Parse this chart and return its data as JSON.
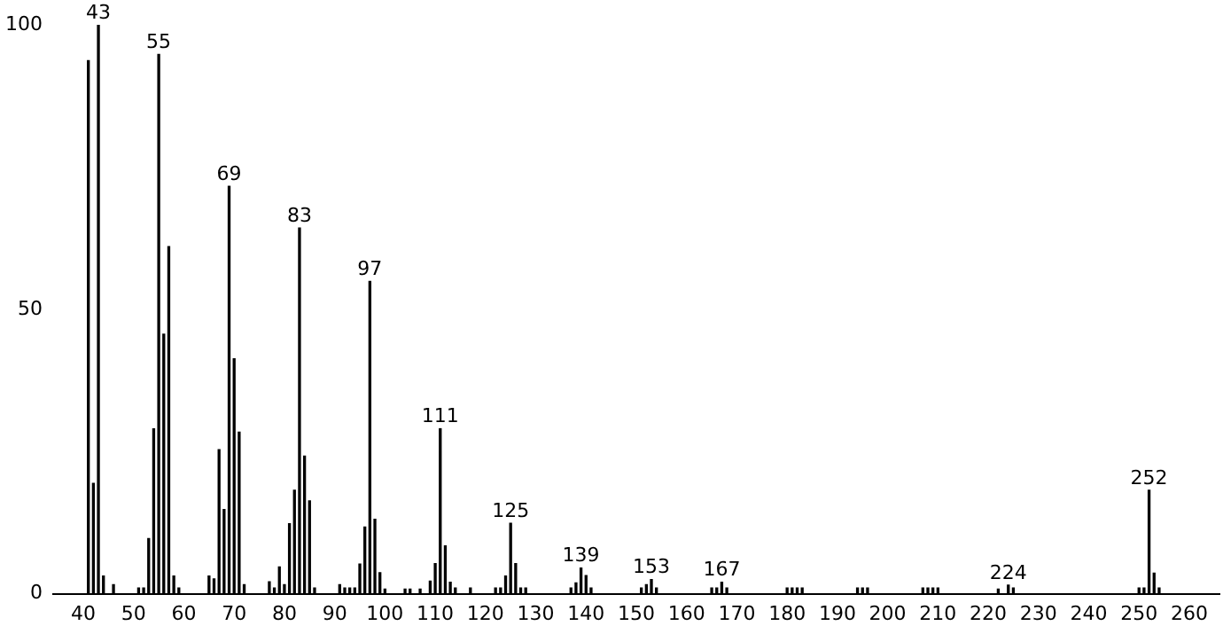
{
  "chart_data": {
    "type": "bar",
    "color": "#000000",
    "x": [
      41,
      42,
      43,
      44,
      46,
      51,
      52,
      53,
      54,
      55,
      56,
      57,
      58,
      59,
      65,
      66,
      67,
      68,
      69,
      70,
      71,
      72,
      77,
      78,
      79,
      80,
      81,
      82,
      83,
      84,
      85,
      86,
      91,
      92,
      93,
      94,
      95,
      96,
      97,
      98,
      99,
      100,
      104,
      105,
      107,
      109,
      110,
      111,
      112,
      113,
      114,
      117,
      122,
      123,
      124,
      125,
      126,
      127,
      128,
      137,
      138,
      139,
      140,
      141,
      151,
      152,
      153,
      154,
      165,
      166,
      167,
      168,
      180,
      181,
      182,
      183,
      194,
      195,
      196,
      207,
      208,
      209,
      210,
      222,
      224,
      225,
      250,
      251,
      252,
      253,
      254
    ],
    "values": [
      93.7,
      19.4,
      100,
      3.1,
      1.6,
      1,
      1,
      9.7,
      29,
      94.8,
      45.6,
      61,
      3.1,
      1,
      3.1,
      2.6,
      25.3,
      14.8,
      71.6,
      41.3,
      28.4,
      1.6,
      2.1,
      1,
      4.7,
      1.6,
      12.3,
      18.2,
      64.3,
      24.2,
      16.3,
      1,
      1.6,
      1,
      1,
      1,
      5.2,
      11.7,
      54.9,
      13.1,
      3.7,
      0.8,
      0.8,
      0.8,
      0.8,
      2.2,
      5.3,
      29,
      8.4,
      2,
      1,
      1,
      1,
      1,
      3.1,
      12.4,
      5.3,
      1,
      1,
      1,
      1.9,
      4.5,
      3.2,
      1,
      1,
      1.6,
      2.5,
      1,
      1,
      1,
      2,
      1,
      1,
      1,
      1,
      1,
      1,
      1,
      1,
      1,
      1,
      1,
      1,
      0.8,
      1.5,
      1,
      1,
      1,
      18.2,
      3.6,
      1
    ],
    "xlim": [
      34,
      266
    ],
    "xticks": [
      40,
      50,
      60,
      70,
      80,
      90,
      100,
      110,
      120,
      130,
      140,
      150,
      160,
      170,
      180,
      190,
      200,
      210,
      220,
      230,
      240,
      250,
      260
    ],
    "ylim": [
      0,
      100
    ],
    "yticks": [
      0,
      50,
      100
    ],
    "grid": false,
    "legend": false,
    "annotations": [
      {
        "text": "43",
        "x": 43,
        "y": 100
      },
      {
        "text": "55",
        "x": 55,
        "y": 94.8
      },
      {
        "text": "69",
        "x": 69,
        "y": 71.6
      },
      {
        "text": "83",
        "x": 83,
        "y": 64.3
      },
      {
        "text": "97",
        "x": 97,
        "y": 54.9
      },
      {
        "text": "111",
        "x": 111,
        "y": 29
      },
      {
        "text": "125",
        "x": 125,
        "y": 12.4
      },
      {
        "text": "139",
        "x": 139,
        "y": 4.5
      },
      {
        "text": "153",
        "x": 153,
        "y": 2.5
      },
      {
        "text": "167",
        "x": 167,
        "y": 2
      },
      {
        "text": "224",
        "x": 224,
        "y": 1.5
      },
      {
        "text": "252",
        "x": 252,
        "y": 18.2
      }
    ]
  }
}
